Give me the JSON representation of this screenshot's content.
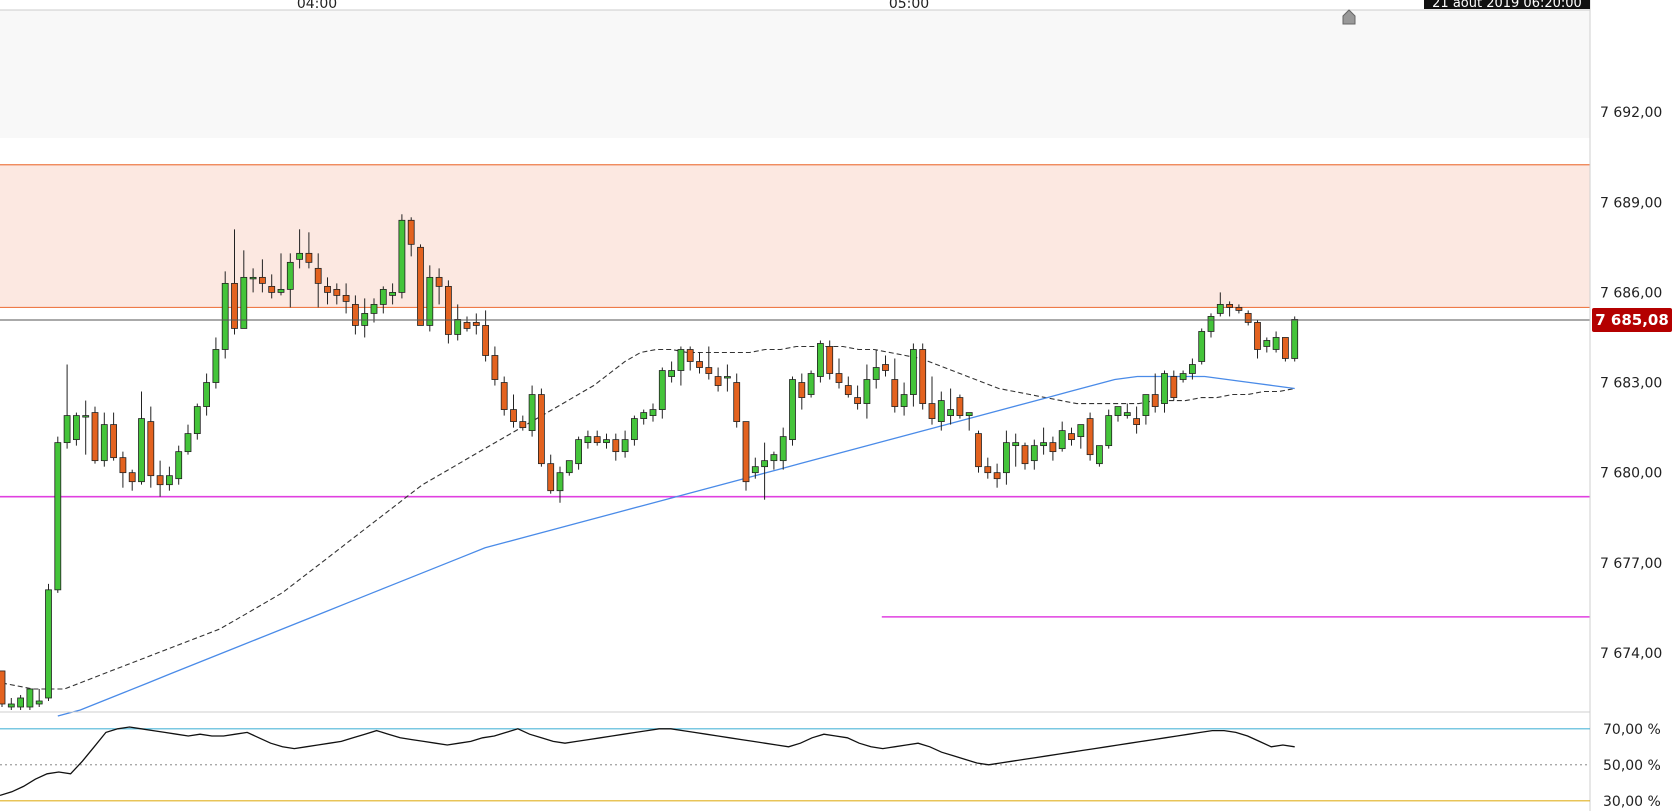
{
  "chart_data": {
    "type": "candlestick",
    "x_ticks": [
      "04:00",
      "05:00"
    ],
    "date_label": "21 août 2019 06:20:00",
    "current_price": 7685.08,
    "current_price_label": "7 685,08",
    "y_ticks": [
      {
        "value": 7692,
        "label": "7 692,00"
      },
      {
        "value": 7689,
        "label": "7 689,00"
      },
      {
        "value": 7686,
        "label": "7 686,00"
      },
      {
        "value": 7683,
        "label": "7 683,00"
      },
      {
        "value": 7680,
        "label": "7 680,00"
      },
      {
        "value": 7677,
        "label": "7 677,00"
      },
      {
        "value": 7674,
        "label": "7 674,00"
      }
    ],
    "ylim": [
      7672.1,
      7695.4
    ],
    "zone": {
      "low": 7685.5,
      "high": 7690.25,
      "color": "#fce8e1",
      "border": "#ee7b48"
    },
    "horizontal_lines": [
      {
        "value": 7679.2,
        "color": "#e040e0",
        "from_index": 0
      },
      {
        "value": 7675.2,
        "color": "#e040e0",
        "from_index": 86
      }
    ],
    "candles": [
      [
        7673.4,
        7673.4,
        7672.2,
        7672.3
      ],
      [
        7672.2,
        7672.5,
        7672.1,
        7672.3
      ],
      [
        7672.2,
        7672.6,
        7672.1,
        7672.5
      ],
      [
        7672.2,
        7672.8,
        7672.1,
        7672.8
      ],
      [
        7672.3,
        7672.8,
        7672.2,
        7672.4
      ],
      [
        7672.5,
        7676.3,
        7672.4,
        7676.1
      ],
      [
        7676.1,
        7681.2,
        7676.0,
        7681.0
      ],
      [
        7681.0,
        7683.6,
        7680.8,
        7681.9
      ],
      [
        7681.1,
        7682.0,
        7680.9,
        7681.9
      ],
      [
        7681.9,
        7682.4,
        7680.6,
        7681.9
      ],
      [
        7682.0,
        7682.2,
        7680.3,
        7680.4
      ],
      [
        7680.4,
        7682.0,
        7680.2,
        7681.6
      ],
      [
        7681.6,
        7682.0,
        7680.4,
        7680.5
      ],
      [
        7680.5,
        7680.7,
        7679.5,
        7680.0
      ],
      [
        7680.0,
        7680.1,
        7679.4,
        7679.7
      ],
      [
        7679.7,
        7682.7,
        7679.6,
        7681.8
      ],
      [
        7681.7,
        7682.2,
        7679.5,
        7679.9
      ],
      [
        7679.9,
        7680.4,
        7679.2,
        7679.6
      ],
      [
        7679.6,
        7680.2,
        7679.4,
        7679.9
      ],
      [
        7679.8,
        7680.9,
        7679.6,
        7680.7
      ],
      [
        7680.7,
        7681.6,
        7680.6,
        7681.3
      ],
      [
        7681.3,
        7682.3,
        7681.1,
        7682.2
      ],
      [
        7682.2,
        7683.3,
        7681.9,
        7683.0
      ],
      [
        7683.0,
        7684.5,
        7682.8,
        7684.1
      ],
      [
        7684.1,
        7686.7,
        7683.8,
        7686.3
      ],
      [
        7686.3,
        7688.1,
        7684.6,
        7684.8
      ],
      [
        7684.8,
        7687.4,
        7684.9,
        7686.5
      ],
      [
        7686.5,
        7686.8,
        7686.0,
        7686.5
      ],
      [
        7686.5,
        7687.1,
        7686.0,
        7686.3
      ],
      [
        7686.2,
        7686.6,
        7685.8,
        7686.0
      ],
      [
        7686.0,
        7687.3,
        7685.9,
        7686.1
      ],
      [
        7686.1,
        7687.3,
        7685.5,
        7687.0
      ],
      [
        7687.1,
        7688.1,
        7686.8,
        7687.3
      ],
      [
        7687.3,
        7688.0,
        7686.8,
        7687.0
      ],
      [
        7686.8,
        7687.3,
        7685.5,
        7686.3
      ],
      [
        7686.2,
        7686.5,
        7685.6,
        7686.0
      ],
      [
        7686.1,
        7686.3,
        7685.6,
        7685.9
      ],
      [
        7685.9,
        7686.3,
        7685.3,
        7685.7
      ],
      [
        7685.6,
        7685.9,
        7684.6,
        7684.9
      ],
      [
        7684.9,
        7685.8,
        7684.5,
        7685.3
      ],
      [
        7685.3,
        7685.8,
        7685.0,
        7685.6
      ],
      [
        7685.6,
        7686.2,
        7685.3,
        7686.1
      ],
      [
        7685.9,
        7686.3,
        7685.6,
        7686.0
      ],
      [
        7686.0,
        7688.6,
        7685.8,
        7688.4
      ],
      [
        7688.4,
        7688.5,
        7687.2,
        7687.6
      ],
      [
        7687.5,
        7687.6,
        7684.9,
        7684.9
      ],
      [
        7684.9,
        7686.9,
        7684.7,
        7686.5
      ],
      [
        7686.5,
        7686.8,
        7685.6,
        7686.2
      ],
      [
        7686.2,
        7686.4,
        7684.3,
        7684.6
      ],
      [
        7684.6,
        7685.6,
        7684.4,
        7685.1
      ],
      [
        7685.0,
        7685.2,
        7684.7,
        7684.8
      ],
      [
        7685.0,
        7685.3,
        7684.6,
        7684.9
      ],
      [
        7684.9,
        7685.4,
        7683.7,
        7683.9
      ],
      [
        7683.9,
        7684.2,
        7682.9,
        7683.1
      ],
      [
        7683.0,
        7683.2,
        7681.9,
        7682.1
      ],
      [
        7682.1,
        7682.6,
        7681.5,
        7681.7
      ],
      [
        7681.7,
        7681.9,
        7681.4,
        7681.5
      ],
      [
        7681.4,
        7682.9,
        7681.2,
        7682.6
      ],
      [
        7682.6,
        7682.8,
        7680.2,
        7680.3
      ],
      [
        7680.3,
        7680.6,
        7679.3,
        7679.4
      ],
      [
        7679.4,
        7680.2,
        7679.0,
        7680.0
      ],
      [
        7680.0,
        7680.4,
        7679.9,
        7680.4
      ],
      [
        7680.3,
        7681.2,
        7680.1,
        7681.1
      ],
      [
        7681.0,
        7681.4,
        7680.8,
        7681.2
      ],
      [
        7681.2,
        7681.4,
        7680.9,
        7681.0
      ],
      [
        7681.0,
        7681.3,
        7680.8,
        7681.1
      ],
      [
        7681.1,
        7681.3,
        7680.4,
        7680.7
      ],
      [
        7680.7,
        7681.4,
        7680.5,
        7681.1
      ],
      [
        7681.1,
        7681.9,
        7680.9,
        7681.8
      ],
      [
        7681.8,
        7682.1,
        7681.6,
        7682.0
      ],
      [
        7681.9,
        7682.3,
        7681.7,
        7682.1
      ],
      [
        7682.1,
        7683.5,
        7681.8,
        7683.4
      ],
      [
        7683.2,
        7683.7,
        7683.0,
        7683.4
      ],
      [
        7683.4,
        7684.2,
        7682.9,
        7684.1
      ],
      [
        7684.1,
        7684.2,
        7683.4,
        7683.7
      ],
      [
        7683.7,
        7684.0,
        7683.3,
        7683.5
      ],
      [
        7683.5,
        7684.2,
        7683.1,
        7683.3
      ],
      [
        7683.2,
        7683.5,
        7682.7,
        7682.9
      ],
      [
        7683.2,
        7683.6,
        7682.7,
        7683.2
      ],
      [
        7683.0,
        7683.3,
        7681.5,
        7681.7
      ],
      [
        7681.7,
        7681.7,
        7679.4,
        7679.7
      ],
      [
        7680.0,
        7680.5,
        7679.8,
        7680.2
      ],
      [
        7680.2,
        7681.0,
        7679.1,
        7680.4
      ],
      [
        7680.4,
        7680.7,
        7680.1,
        7680.6
      ],
      [
        7680.4,
        7681.5,
        7680.1,
        7681.2
      ],
      [
        7681.1,
        7683.2,
        7680.9,
        7683.1
      ],
      [
        7683.0,
        7683.3,
        7682.1,
        7682.5
      ],
      [
        7682.6,
        7683.4,
        7682.5,
        7683.3
      ],
      [
        7683.2,
        7684.4,
        7683.0,
        7684.3
      ],
      [
        7684.2,
        7684.4,
        7683.1,
        7683.3
      ],
      [
        7683.3,
        7683.8,
        7682.8,
        7683.0
      ],
      [
        7682.9,
        7683.2,
        7682.5,
        7682.6
      ],
      [
        7682.5,
        7682.9,
        7682.1,
        7682.3
      ],
      [
        7682.3,
        7683.6,
        7681.8,
        7683.1
      ],
      [
        7683.1,
        7684.1,
        7682.8,
        7683.5
      ],
      [
        7683.6,
        7683.9,
        7683.2,
        7683.4
      ],
      [
        7683.1,
        7683.8,
        7682.0,
        7682.2
      ],
      [
        7682.2,
        7683.0,
        7681.9,
        7682.6
      ],
      [
        7682.6,
        7684.3,
        7682.2,
        7684.1
      ],
      [
        7684.1,
        7684.3,
        7682.1,
        7682.3
      ],
      [
        7682.3,
        7683.2,
        7681.6,
        7681.8
      ],
      [
        7681.7,
        7682.7,
        7681.4,
        7682.4
      ],
      [
        7681.9,
        7682.8,
        7681.6,
        7682.1
      ],
      [
        7682.5,
        7682.6,
        7681.8,
        7681.9
      ],
      [
        7681.9,
        7681.9,
        7681.4,
        7682.0
      ],
      [
        7681.3,
        7681.4,
        7680.0,
        7680.2
      ],
      [
        7680.2,
        7680.5,
        7679.8,
        7680.0
      ],
      [
        7680.0,
        7680.3,
        7679.5,
        7679.8
      ],
      [
        7680.0,
        7681.4,
        7679.6,
        7681.0
      ],
      [
        7680.9,
        7681.3,
        7680.2,
        7681.0
      ],
      [
        7680.9,
        7681.0,
        7680.1,
        7680.3
      ],
      [
        7680.4,
        7681.1,
        7680.1,
        7680.9
      ],
      [
        7680.9,
        7681.5,
        7680.6,
        7681.0
      ],
      [
        7681.0,
        7681.2,
        7680.4,
        7680.7
      ],
      [
        7680.8,
        7681.7,
        7680.7,
        7681.4
      ],
      [
        7681.3,
        7681.5,
        7680.9,
        7681.1
      ],
      [
        7681.2,
        7681.5,
        7680.8,
        7681.6
      ],
      [
        7681.8,
        7682.0,
        7680.4,
        7680.6
      ],
      [
        7680.3,
        7680.9,
        7680.2,
        7680.9
      ],
      [
        7680.9,
        7682.1,
        7680.8,
        7681.9
      ],
      [
        7681.9,
        7682.1,
        7681.7,
        7682.2
      ],
      [
        7681.9,
        7682.3,
        7681.8,
        7682.0
      ],
      [
        7681.8,
        7682.2,
        7681.3,
        7681.6
      ],
      [
        7681.9,
        7682.6,
        7681.6,
        7682.6
      ],
      [
        7682.6,
        7683.3,
        7682.0,
        7682.2
      ],
      [
        7682.3,
        7683.4,
        7682.0,
        7683.3
      ],
      [
        7683.2,
        7683.4,
        7682.4,
        7682.5
      ],
      [
        7683.1,
        7683.4,
        7683.0,
        7683.3
      ],
      [
        7683.3,
        7683.8,
        7683.1,
        7683.6
      ],
      [
        7683.7,
        7684.8,
        7683.6,
        7684.7
      ],
      [
        7684.7,
        7685.3,
        7684.5,
        7685.2
      ],
      [
        7685.3,
        7686.0,
        7685.2,
        7685.6
      ],
      [
        7685.6,
        7685.7,
        7685.2,
        7685.5
      ],
      [
        7685.5,
        7685.6,
        7685.3,
        7685.4
      ],
      [
        7685.3,
        7685.4,
        7684.9,
        7685.0
      ],
      [
        7685.0,
        7685.1,
        7683.8,
        7684.1
      ],
      [
        7684.2,
        7684.5,
        7684.0,
        7684.4
      ],
      [
        7684.1,
        7684.7,
        7684.0,
        7684.5
      ],
      [
        7684.5,
        7684.5,
        7683.7,
        7683.8
      ],
      [
        7683.8,
        7685.2,
        7683.7,
        7685.1
      ]
    ],
    "ma_dashed": [
      7673.0,
      7672.9,
      7672.8,
      7672.8,
      7672.8,
      7673.0,
      7673.2,
      7673.4,
      7673.6,
      7673.8,
      7674.0,
      7674.2,
      7674.4,
      7674.6,
      7674.8,
      7675.1,
      7675.4,
      7675.7,
      7676.0,
      7676.4,
      7676.8,
      7677.2,
      7677.6,
      7678.0,
      7678.4,
      7678.8,
      7679.2,
      7679.6,
      7679.9,
      7680.2,
      7680.5,
      7680.8,
      7681.1,
      7681.4,
      7681.7,
      7682.0,
      7682.3,
      7682.6,
      7682.9,
      7683.3,
      7683.7,
      7684.0,
      7684.1,
      7684.1,
      7684.0,
      7684.0,
      7684.0,
      7684.0,
      7684.0,
      7684.1,
      7684.1,
      7684.2,
      7684.2,
      7684.2,
      7684.2,
      7684.1,
      7684.1,
      7684.0,
      7683.9,
      7683.8,
      7683.6,
      7683.4,
      7683.2,
      7683.0,
      7682.8,
      7682.7,
      7682.6,
      7682.5,
      7682.4,
      7682.3,
      7682.3,
      7682.3,
      7682.3,
      7682.3,
      7682.4,
      7682.4,
      7682.4,
      7682.5,
      7682.5,
      7682.6,
      7682.6,
      7682.7,
      7682.7,
      7682.8
    ],
    "ma_dashed_start": 0,
    "ma_blue": [
      7671.9,
      7672.1,
      7672.4,
      7672.7,
      7673.0,
      7673.3,
      7673.6,
      7673.9,
      7674.2,
      7674.5,
      7674.8,
      7675.1,
      7675.4,
      7675.7,
      7676.0,
      7676.3,
      7676.6,
      7676.9,
      7677.2,
      7677.5,
      7677.7,
      7677.9,
      7678.1,
      7678.3,
      7678.5,
      7678.7,
      7678.9,
      7679.1,
      7679.3,
      7679.5,
      7679.7,
      7679.9,
      7680.1,
      7680.3,
      7680.5,
      7680.7,
      7680.9,
      7681.1,
      7681.3,
      7681.5,
      7681.7,
      7681.9,
      7682.1,
      7682.3,
      7682.5,
      7682.7,
      7682.9,
      7683.1,
      7683.2,
      7683.2,
      7683.2,
      7683.2,
      7683.1,
      7683.0,
      7682.9,
      7682.8
    ],
    "ma_blue_start": 6,
    "rsi": {
      "y_ticks": [
        {
          "value": 70,
          "label": "70,00 %"
        },
        {
          "value": 50,
          "label": "50,00 %"
        },
        {
          "value": 30,
          "label": "30,00 %"
        }
      ],
      "ylim": [
        26,
        76
      ],
      "values": [
        33,
        35,
        38,
        42,
        45,
        46,
        45,
        52,
        60,
        68,
        70,
        71,
        70,
        69,
        68,
        67,
        66,
        67,
        66,
        66,
        67,
        68,
        65,
        62,
        60,
        59,
        60,
        61,
        62,
        63,
        65,
        67,
        69,
        67,
        65,
        64,
        63,
        62,
        61,
        62,
        63,
        65,
        66,
        68,
        70,
        67,
        65,
        63,
        62,
        63,
        64,
        65,
        66,
        67,
        68,
        69,
        70,
        70,
        69,
        68,
        67,
        66,
        65,
        64,
        63,
        62,
        61,
        60,
        62,
        65,
        67,
        66,
        65,
        62,
        60,
        59,
        60,
        61,
        62,
        60,
        57,
        55,
        53,
        51,
        50,
        51,
        52,
        53,
        54,
        55,
        56,
        57,
        58,
        59,
        60,
        61,
        62,
        63,
        64,
        65,
        66,
        67,
        68,
        69,
        69,
        68,
        66,
        63,
        60,
        61,
        60
      ]
    }
  }
}
